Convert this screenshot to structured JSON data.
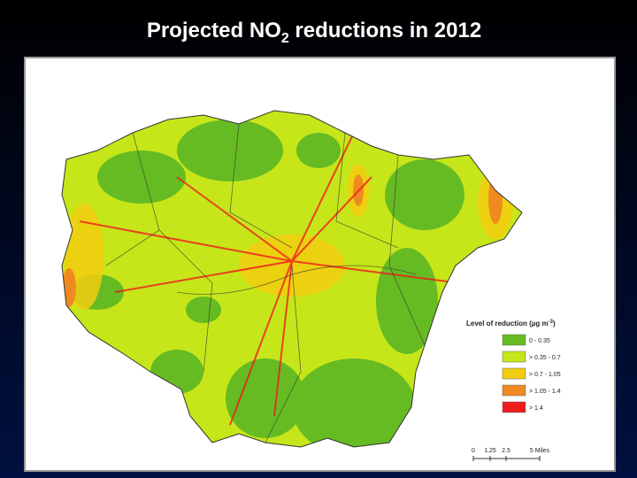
{
  "title": {
    "before": "Projected NO",
    "sub": "2",
    "after": " reductions in 2012"
  },
  "legend": {
    "title_before": "Level of reduction (µg m",
    "title_sup": "-3",
    "title_after": ")",
    "items": [
      {
        "label": "0 - 0.35",
        "color": "#66bb22"
      },
      {
        "label": "> 0.35 - 0.7",
        "color": "#c6e61a"
      },
      {
        "label": "> 0.7 - 1.05",
        "color": "#f2cc10"
      },
      {
        "label": "> 1.05 - 1.4",
        "color": "#f08a20"
      },
      {
        "label": "> 1.4",
        "color": "#ee1c1c"
      }
    ]
  },
  "scale_bar": {
    "labels": [
      "0",
      "1.25",
      "2.5",
      "5 Miles"
    ]
  }
}
